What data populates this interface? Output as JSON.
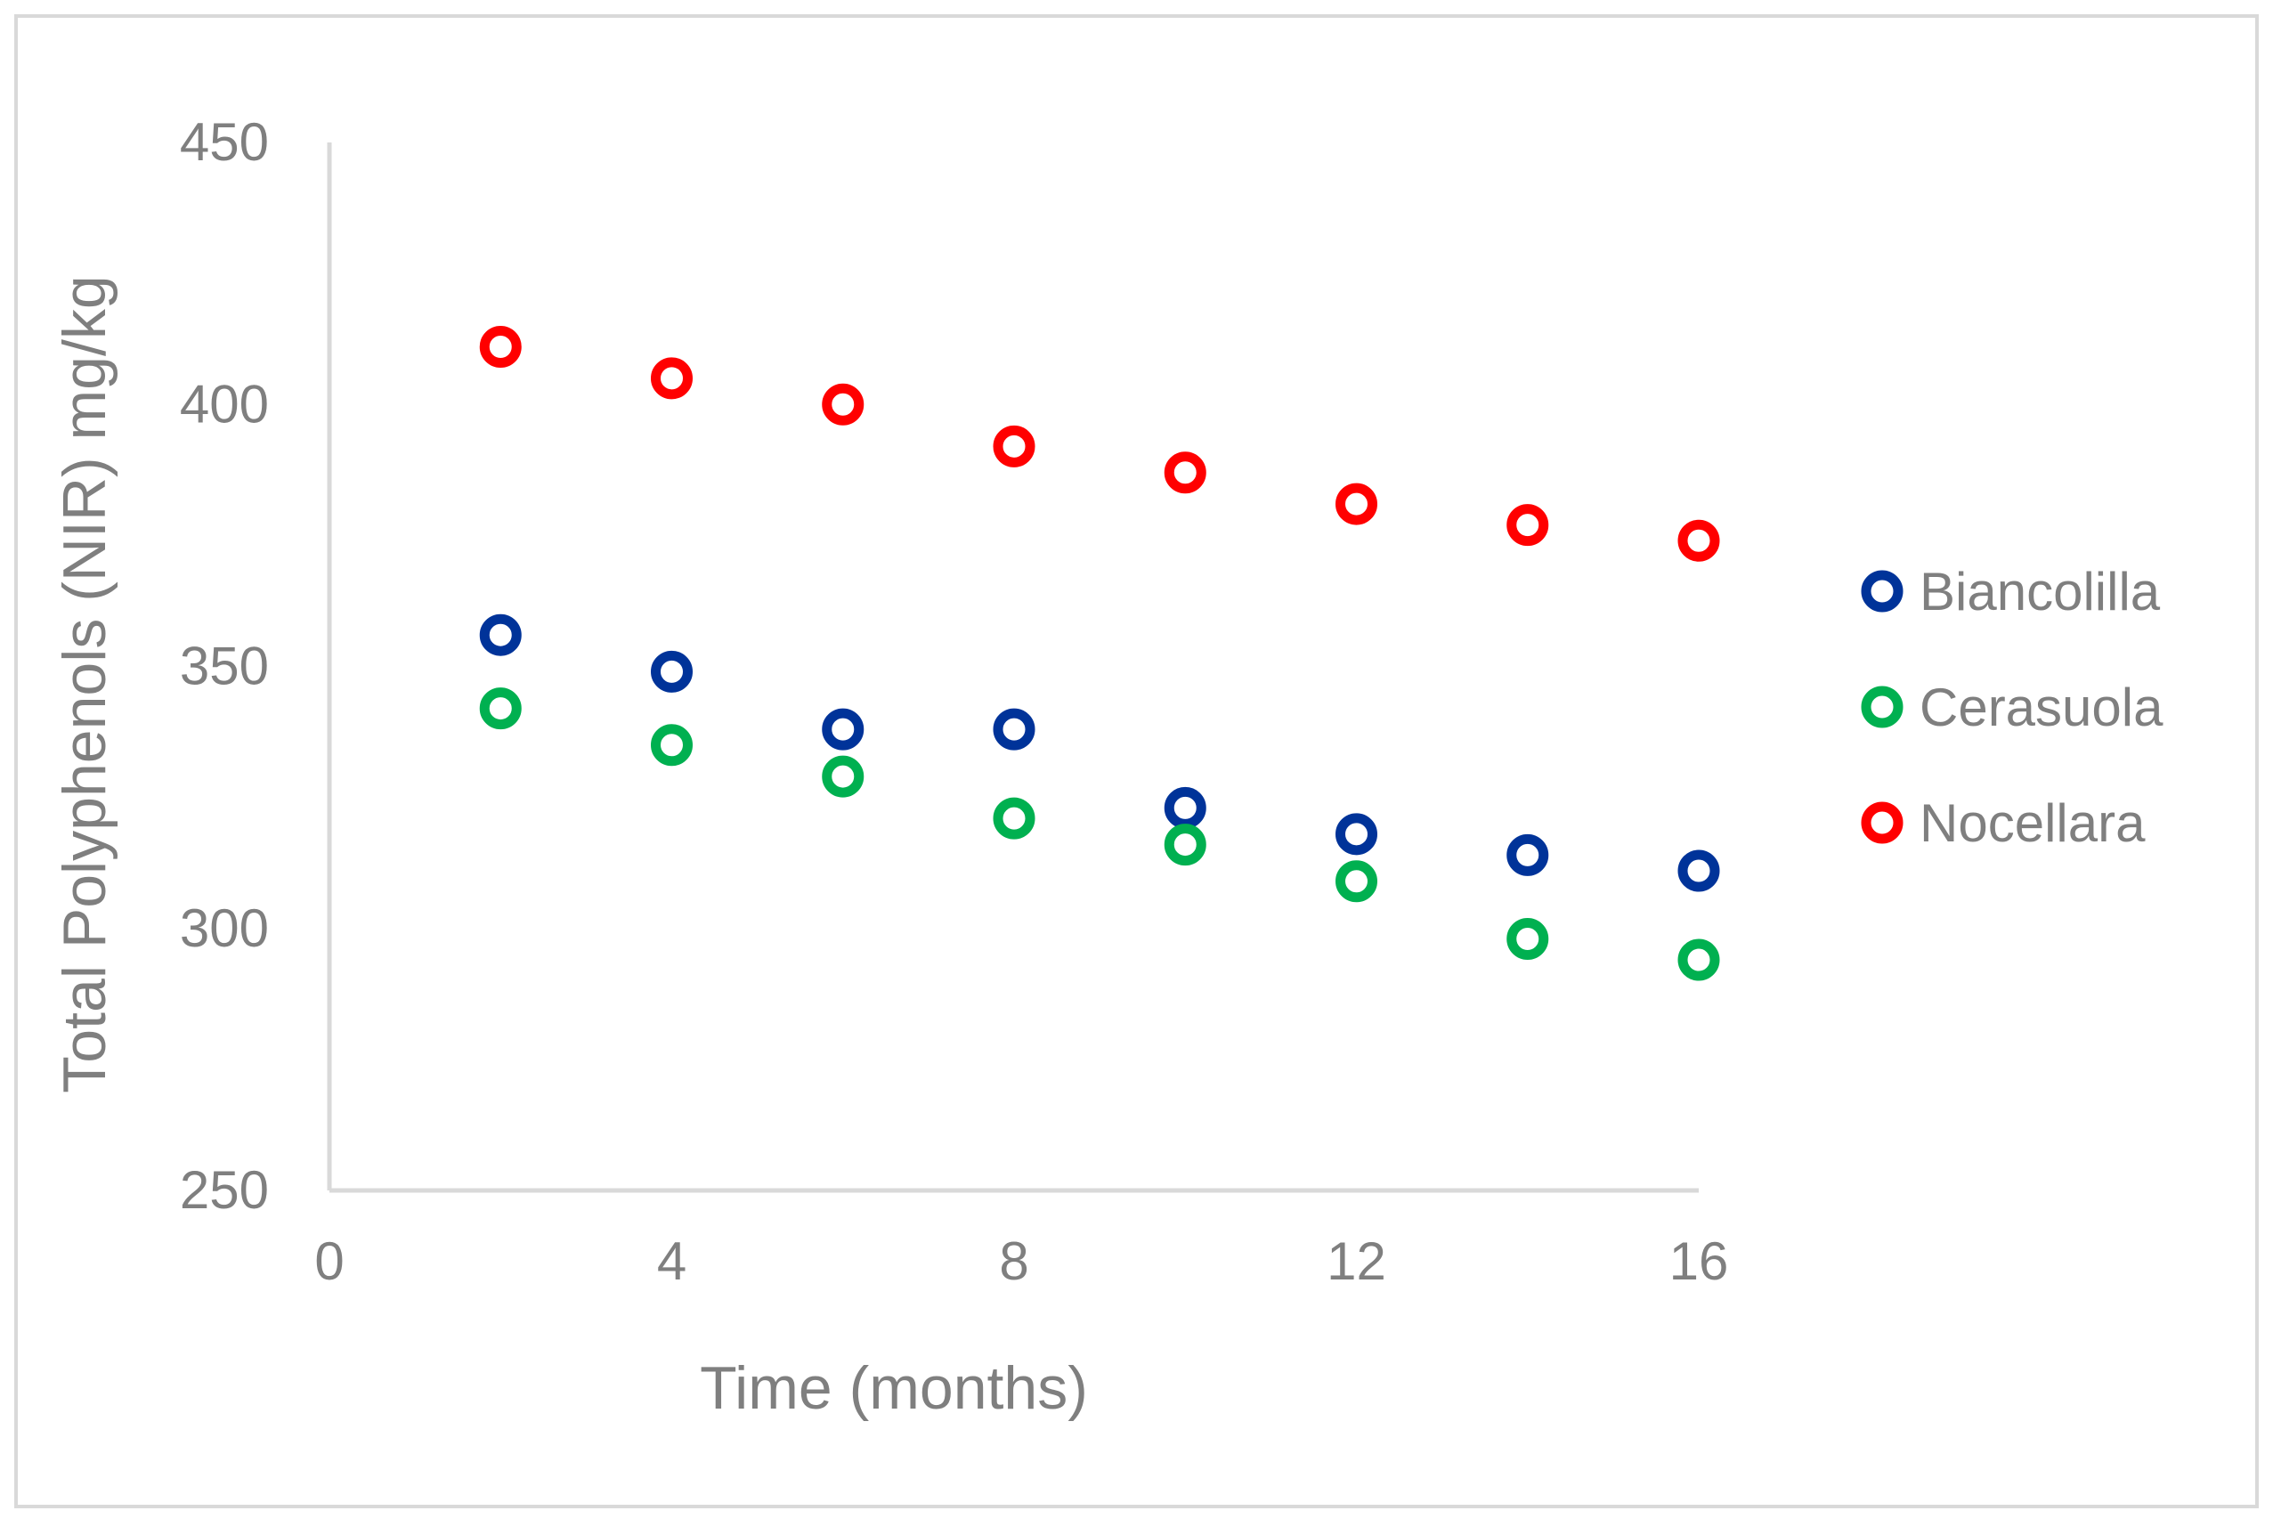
{
  "chart_data": {
    "type": "scatter",
    "title": "",
    "xlabel": "Time (months)",
    "ylabel": "Total Polyphenols (NIR) mg/kg",
    "xlim": [
      0,
      16
    ],
    "ylim": [
      250,
      450
    ],
    "xticks": [
      "0",
      "4",
      "8",
      "12",
      "16"
    ],
    "yticks": [
      "250",
      "300",
      "350",
      "400",
      "450"
    ],
    "grid": false,
    "legend_position": "right",
    "x": [
      2,
      4,
      6,
      8,
      10,
      12,
      14,
      16
    ],
    "series": [
      {
        "name": "Biancolilla",
        "color": "#003399",
        "values": [
          356,
          349,
          338,
          338,
          323,
          318,
          314,
          311
        ]
      },
      {
        "name": "Cerasuola",
        "color": "#00b050",
        "values": [
          342,
          335,
          329,
          321,
          316,
          309,
          298,
          294
        ]
      },
      {
        "name": "Nocellara",
        "color": "#ff0000",
        "values": [
          411,
          405,
          400,
          392,
          387,
          381,
          377,
          374
        ]
      }
    ]
  }
}
